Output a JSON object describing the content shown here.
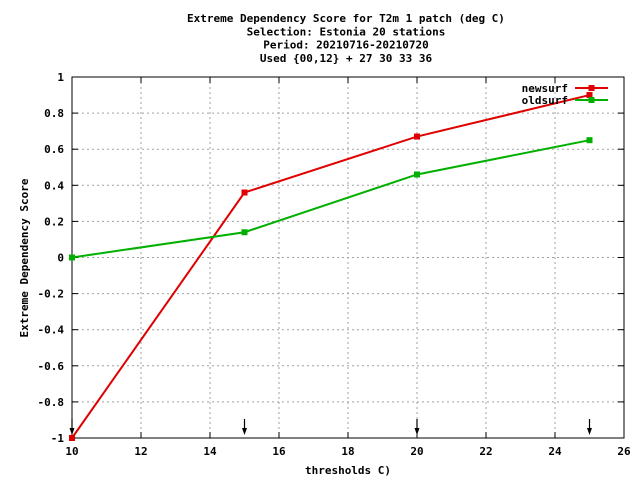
{
  "chart_data": {
    "type": "line",
    "title_lines": [
      "Extreme Dependency Score  for T2m 1 patch (deg C)",
      "Selection: Estonia     20 stations",
      "Period: 20210716-20210720",
      "Used {00,12} + 27 30 33 36"
    ],
    "xlabel": "thresholds C)",
    "ylabel": "Extreme Dependency Score",
    "xlim": [
      10,
      26
    ],
    "ylim": [
      -1,
      1
    ],
    "xticks": [
      10,
      12,
      14,
      16,
      18,
      20,
      22,
      24,
      26
    ],
    "yticks": [
      -1,
      -0.8,
      -0.6,
      -0.4,
      -0.2,
      0,
      0.2,
      0.4,
      0.6,
      0.8,
      1
    ],
    "grid": true,
    "legend_position": "top-right",
    "threshold_markers": [
      10,
      15,
      20,
      25
    ],
    "series": [
      {
        "name": "newsurf",
        "color": "#e00000",
        "x": [
          10,
          15,
          20,
          25
        ],
        "y": [
          -1.0,
          0.36,
          0.67,
          0.9
        ]
      },
      {
        "name": "oldsurf",
        "color": "#00b000",
        "x": [
          10,
          15,
          20,
          25
        ],
        "y": [
          0.0,
          0.14,
          0.46,
          0.65
        ]
      }
    ]
  }
}
